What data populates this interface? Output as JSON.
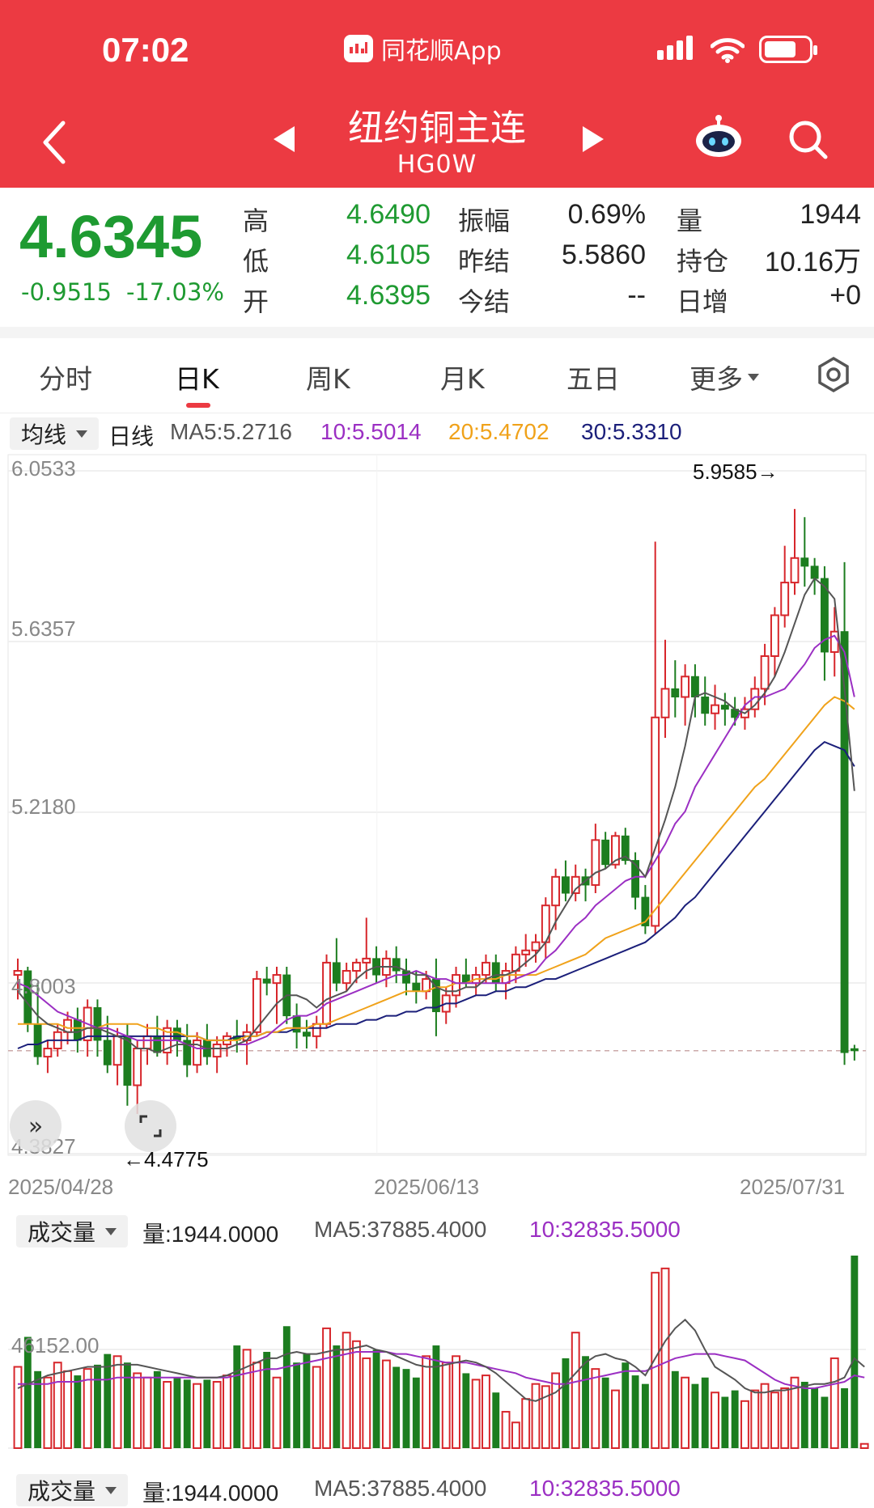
{
  "status_bar": {
    "time": "07:02",
    "app_label": "同花顺App"
  },
  "nav": {
    "title": "纽约铜主连",
    "code": "HG0W"
  },
  "quote": {
    "price": "4.6345",
    "change": "-0.9515",
    "change_pct": "-17.03%",
    "rows": [
      {
        "l1": "高",
        "v1": "4.6490",
        "l2": "振幅",
        "v2": "0.69%",
        "l3": "量",
        "v3": "1944"
      },
      {
        "l1": "低",
        "v1": "4.6105",
        "l2": "昨结",
        "v2": "5.5860",
        "l3": "持仓",
        "v3": "10.16万"
      },
      {
        "l1": "开",
        "v1": "4.6395",
        "l2": "今结",
        "v2": "--",
        "l3": "日增",
        "v3": "+0"
      }
    ]
  },
  "tabs": [
    "分时",
    "日K",
    "周K",
    "月K",
    "五日",
    "更多"
  ],
  "active_tab": "日K",
  "ma_bar": {
    "selector": "均线",
    "period": "日线",
    "ma5": "MA5:5.2716",
    "ma10": "10:5.5014",
    "ma20": "20:5.4702",
    "ma30": "30:5.3310"
  },
  "chart_data": {
    "type": "candlestick",
    "title": "",
    "y_ticks": [
      "6.0533",
      "5.6357",
      "5.2180",
      "4.8003",
      "4.3827"
    ],
    "ylim": [
      4.3827,
      6.0533
    ],
    "x_ticks": [
      "2025/04/28",
      "2025/06/13",
      "2025/07/31"
    ],
    "annotations": {
      "high": "5.9585→",
      "low": "←4.4775"
    },
    "last_price": 4.6345,
    "colors": {
      "up": "#d7262b",
      "down": "#1c7d1f",
      "ma5": "#555555",
      "ma10": "#9b2fc3",
      "ma20": "#f0a21a",
      "ma30": "#1b1f7a"
    },
    "candles": [
      [
        4.82,
        4.86,
        4.76,
        4.83
      ],
      [
        4.83,
        4.84,
        4.68,
        4.7
      ],
      [
        4.7,
        4.8,
        4.6,
        4.62
      ],
      [
        4.62,
        4.66,
        4.58,
        4.64
      ],
      [
        4.64,
        4.7,
        4.62,
        4.68
      ],
      [
        4.68,
        4.73,
        4.65,
        4.71
      ],
      [
        4.71,
        4.74,
        4.63,
        4.66
      ],
      [
        4.66,
        4.76,
        4.62,
        4.74
      ],
      [
        4.74,
        4.76,
        4.62,
        4.66
      ],
      [
        4.66,
        4.72,
        4.58,
        4.6
      ],
      [
        4.6,
        4.69,
        4.55,
        4.67
      ],
      [
        4.67,
        4.7,
        4.5,
        4.55
      ],
      [
        4.55,
        4.66,
        4.48,
        4.64
      ],
      [
        4.64,
        4.7,
        4.6,
        4.67
      ],
      [
        4.67,
        4.72,
        4.62,
        4.63
      ],
      [
        4.63,
        4.71,
        4.6,
        4.69
      ],
      [
        4.69,
        4.71,
        4.62,
        4.66
      ],
      [
        4.66,
        4.7,
        4.57,
        4.6
      ],
      [
        4.6,
        4.68,
        4.58,
        4.66
      ],
      [
        4.66,
        4.7,
        4.6,
        4.62
      ],
      [
        4.62,
        4.67,
        4.58,
        4.65
      ],
      [
        4.65,
        4.68,
        4.62,
        4.67
      ],
      [
        4.67,
        4.71,
        4.63,
        4.66
      ],
      [
        4.66,
        4.7,
        4.6,
        4.68
      ],
      [
        4.68,
        4.83,
        4.67,
        4.81
      ],
      [
        4.81,
        4.84,
        4.77,
        4.8
      ],
      [
        4.8,
        4.84,
        4.7,
        4.82
      ],
      [
        4.82,
        4.84,
        4.7,
        4.72
      ],
      [
        4.72,
        4.75,
        4.64,
        4.68
      ],
      [
        4.68,
        4.71,
        4.64,
        4.67
      ],
      [
        4.67,
        4.72,
        4.64,
        4.7
      ],
      [
        4.7,
        4.87,
        4.69,
        4.85
      ],
      [
        4.85,
        4.91,
        4.78,
        4.8
      ],
      [
        4.8,
        4.85,
        4.78,
        4.83
      ],
      [
        4.83,
        4.86,
        4.8,
        4.85
      ],
      [
        4.85,
        4.96,
        4.81,
        4.86
      ],
      [
        4.86,
        4.89,
        4.8,
        4.82
      ],
      [
        4.82,
        4.88,
        4.79,
        4.86
      ],
      [
        4.86,
        4.89,
        4.8,
        4.83
      ],
      [
        4.83,
        4.86,
        4.77,
        4.8
      ],
      [
        4.8,
        4.83,
        4.75,
        4.78
      ],
      [
        4.78,
        4.83,
        4.76,
        4.81
      ],
      [
        4.81,
        4.86,
        4.67,
        4.73
      ],
      [
        4.73,
        4.79,
        4.7,
        4.77
      ],
      [
        4.77,
        4.84,
        4.74,
        4.82
      ],
      [
        4.82,
        4.86,
        4.79,
        4.8
      ],
      [
        4.8,
        4.84,
        4.77,
        4.82
      ],
      [
        4.82,
        4.87,
        4.8,
        4.85
      ],
      [
        4.85,
        4.87,
        4.78,
        4.8
      ],
      [
        4.8,
        4.85,
        4.76,
        4.83
      ],
      [
        4.83,
        4.89,
        4.8,
        4.87
      ],
      [
        4.87,
        4.92,
        4.84,
        4.88
      ],
      [
        4.88,
        4.92,
        4.85,
        4.9
      ],
      [
        4.9,
        5.01,
        4.86,
        4.99
      ],
      [
        4.99,
        5.08,
        4.93,
        5.06
      ],
      [
        5.06,
        5.1,
        5.0,
        5.02
      ],
      [
        5.02,
        5.09,
        5.0,
        5.06
      ],
      [
        5.06,
        5.08,
        5.0,
        5.04
      ],
      [
        5.04,
        5.19,
        5.02,
        5.15
      ],
      [
        5.15,
        5.17,
        5.08,
        5.09
      ],
      [
        5.09,
        5.17,
        5.08,
        5.16
      ],
      [
        5.16,
        5.18,
        5.09,
        5.1
      ],
      [
        5.1,
        5.12,
        4.98,
        5.01
      ],
      [
        5.01,
        5.04,
        4.92,
        4.94
      ],
      [
        4.94,
        5.88,
        4.92,
        5.45
      ],
      [
        5.45,
        5.64,
        5.4,
        5.52
      ],
      [
        5.52,
        5.59,
        5.45,
        5.5
      ],
      [
        5.5,
        5.58,
        5.43,
        5.55
      ],
      [
        5.55,
        5.58,
        5.45,
        5.5
      ],
      [
        5.5,
        5.55,
        5.43,
        5.46
      ],
      [
        5.46,
        5.53,
        5.42,
        5.48
      ],
      [
        5.48,
        5.51,
        5.43,
        5.47
      ],
      [
        5.47,
        5.5,
        5.43,
        5.45
      ],
      [
        5.45,
        5.5,
        5.42,
        5.47
      ],
      [
        5.47,
        5.55,
        5.45,
        5.52
      ],
      [
        5.52,
        5.63,
        5.48,
        5.6
      ],
      [
        5.6,
        5.72,
        5.55,
        5.7
      ],
      [
        5.7,
        5.87,
        5.67,
        5.78
      ],
      [
        5.78,
        5.96,
        5.75,
        5.84
      ],
      [
        5.84,
        5.94,
        5.77,
        5.82
      ],
      [
        5.82,
        5.84,
        5.75,
        5.79
      ],
      [
        5.79,
        5.82,
        5.54,
        5.61
      ],
      [
        5.61,
        5.72,
        5.55,
        5.66
      ],
      [
        5.66,
        5.83,
        4.6,
        4.63
      ],
      [
        4.6395,
        4.649,
        4.6105,
        4.6345
      ]
    ],
    "ma": {
      "ma5": [
        4.78,
        4.75,
        4.72,
        4.7,
        4.69,
        4.68,
        4.68,
        4.69,
        4.69,
        4.68,
        4.67,
        4.66,
        4.64,
        4.64,
        4.63,
        4.64,
        4.65,
        4.65,
        4.65,
        4.64,
        4.64,
        4.64,
        4.65,
        4.66,
        4.69,
        4.72,
        4.75,
        4.77,
        4.77,
        4.76,
        4.74,
        4.76,
        4.77,
        4.78,
        4.81,
        4.83,
        4.84,
        4.84,
        4.84,
        4.83,
        4.82,
        4.82,
        4.79,
        4.78,
        4.78,
        4.79,
        4.79,
        4.81,
        4.82,
        4.82,
        4.83,
        4.85,
        4.87,
        4.9,
        4.95,
        4.99,
        5.03,
        5.05,
        5.07,
        5.08,
        5.1,
        5.11,
        5.09,
        5.06,
        5.13,
        5.2,
        5.28,
        5.38,
        5.5,
        5.51,
        5.5,
        5.49,
        5.47,
        5.46,
        5.48,
        5.51,
        5.55,
        5.61,
        5.68,
        5.75,
        5.79,
        5.77,
        5.74,
        5.52,
        5.27
      ],
      "ma10": [
        4.8,
        4.79,
        4.77,
        4.75,
        4.73,
        4.72,
        4.71,
        4.7,
        4.69,
        4.69,
        4.68,
        4.67,
        4.66,
        4.66,
        4.66,
        4.66,
        4.66,
        4.65,
        4.64,
        4.64,
        4.64,
        4.64,
        4.65,
        4.65,
        4.66,
        4.67,
        4.69,
        4.71,
        4.72,
        4.72,
        4.73,
        4.75,
        4.76,
        4.77,
        4.78,
        4.79,
        4.8,
        4.81,
        4.82,
        4.82,
        4.83,
        4.82,
        4.81,
        4.81,
        4.8,
        4.8,
        4.8,
        4.8,
        4.8,
        4.8,
        4.81,
        4.82,
        4.83,
        4.86,
        4.88,
        4.91,
        4.94,
        4.96,
        4.99,
        5.01,
        5.03,
        5.05,
        5.06,
        5.06,
        5.1,
        5.14,
        5.19,
        5.22,
        5.28,
        5.32,
        5.36,
        5.4,
        5.44,
        5.48,
        5.5,
        5.5,
        5.51,
        5.52,
        5.55,
        5.58,
        5.62,
        5.64,
        5.65,
        5.61,
        5.5
      ],
      "ma20": [
        4.7,
        4.7,
        4.7,
        4.7,
        4.7,
        4.69,
        4.69,
        4.69,
        4.69,
        4.7,
        4.7,
        4.7,
        4.7,
        4.69,
        4.69,
        4.68,
        4.68,
        4.67,
        4.67,
        4.66,
        4.66,
        4.66,
        4.66,
        4.67,
        4.67,
        4.68,
        4.68,
        4.69,
        4.69,
        4.69,
        4.7,
        4.7,
        4.71,
        4.72,
        4.73,
        4.74,
        4.75,
        4.76,
        4.77,
        4.78,
        4.78,
        4.78,
        4.79,
        4.79,
        4.8,
        4.8,
        4.81,
        4.81,
        4.81,
        4.82,
        4.82,
        4.82,
        4.82,
        4.83,
        4.84,
        4.85,
        4.86,
        4.87,
        4.89,
        4.91,
        4.92,
        4.93,
        4.94,
        4.95,
        4.98,
        5.01,
        5.04,
        5.07,
        5.1,
        5.13,
        5.16,
        5.19,
        5.22,
        5.25,
        5.28,
        5.3,
        5.33,
        5.36,
        5.39,
        5.42,
        5.45,
        5.48,
        5.5,
        5.49,
        5.47
      ],
      "ma30": [
        4.64,
        4.65,
        4.65,
        4.66,
        4.66,
        4.66,
        4.66,
        4.67,
        4.67,
        4.67,
        4.67,
        4.67,
        4.67,
        4.67,
        4.67,
        4.67,
        4.67,
        4.67,
        4.67,
        4.66,
        4.66,
        4.66,
        4.67,
        4.67,
        4.67,
        4.68,
        4.68,
        4.68,
        4.69,
        4.69,
        4.69,
        4.69,
        4.7,
        4.7,
        4.7,
        4.71,
        4.71,
        4.72,
        4.72,
        4.73,
        4.73,
        4.74,
        4.74,
        4.75,
        4.75,
        4.76,
        4.77,
        4.77,
        4.78,
        4.78,
        4.79,
        4.79,
        4.8,
        4.81,
        4.81,
        4.82,
        4.83,
        4.84,
        4.85,
        4.86,
        4.87,
        4.88,
        4.89,
        4.9,
        4.92,
        4.94,
        4.96,
        4.99,
        5.01,
        5.04,
        5.07,
        5.1,
        5.13,
        5.16,
        5.19,
        5.22,
        5.25,
        5.28,
        5.31,
        5.34,
        5.37,
        5.39,
        5.38,
        5.37,
        5.33
      ]
    }
  },
  "volume_bar": {
    "selector": "成交量",
    "vol": "量:1944.0000",
    "ma5": "MA5:37885.4000",
    "ma10": "10:32835.5000",
    "y_tick": "46152.00"
  },
  "volume_data": {
    "type": "bar",
    "ylim": [
      0,
      90000
    ],
    "values": [
      38000,
      52000,
      36000,
      33000,
      40000,
      36000,
      34000,
      37000,
      39000,
      44000,
      43000,
      40000,
      35000,
      33000,
      36000,
      31000,
      33000,
      32000,
      30000,
      32000,
      31000,
      34000,
      48000,
      46000,
      40000,
      45000,
      33000,
      57000,
      40000,
      44000,
      38000,
      56000,
      48000,
      54000,
      50000,
      42000,
      46000,
      41000,
      38000,
      37000,
      33000,
      43000,
      48000,
      40000,
      43000,
      35000,
      32000,
      34000,
      26000,
      17000,
      12000,
      23000,
      30000,
      29000,
      35000,
      42000,
      54000,
      43000,
      37000,
      33000,
      27000,
      40000,
      34000,
      30000,
      82000,
      84000,
      36000,
      33000,
      30000,
      33000,
      26000,
      24000,
      27000,
      22000,
      27000,
      30000,
      26000,
      28000,
      33000,
      31000,
      28000,
      24000,
      42000,
      28000,
      90000,
      2000
    ],
    "ma5": [
      28000,
      30000,
      32000,
      34000,
      35000,
      36000,
      37000,
      38000,
      38000,
      38000,
      39000,
      39000,
      39000,
      38000,
      37000,
      36000,
      35000,
      34000,
      33000,
      33000,
      33000,
      34000,
      36000,
      38000,
      40000,
      42000,
      42000,
      44000,
      45000,
      44000,
      44000,
      45000,
      46000,
      46000,
      47000,
      48000,
      46000,
      45000,
      43000,
      41000,
      39000,
      38000,
      38000,
      39000,
      40000,
      41000,
      40000,
      38000,
      35000,
      31000,
      27000,
      23000,
      22000,
      24000,
      26000,
      30000,
      35000,
      40000,
      43000,
      44000,
      42000,
      41000,
      38000,
      34000,
      42000,
      50000,
      56000,
      60000,
      55000,
      46000,
      38000,
      35000,
      32000,
      28000,
      26000,
      26000,
      27000,
      27000,
      28000,
      29000,
      30000,
      30000,
      31000,
      33000,
      42000,
      38000
    ],
    "ma10": [
      30000,
      30000,
      30000,
      30000,
      31000,
      31000,
      31000,
      32000,
      32000,
      32000,
      33000,
      33000,
      33000,
      33000,
      33000,
      33000,
      33000,
      33000,
      33000,
      33000,
      33000,
      33000,
      34000,
      35000,
      36000,
      37000,
      37000,
      38000,
      39000,
      40000,
      41000,
      42000,
      43000,
      44000,
      45000,
      45000,
      45000,
      45000,
      44000,
      44000,
      43000,
      42000,
      41000,
      40000,
      40000,
      40000,
      39000,
      38000,
      37000,
      36000,
      35000,
      33000,
      32000,
      31000,
      30000,
      30000,
      31000,
      32000,
      33000,
      34000,
      35000,
      36000,
      36000,
      36000,
      38000,
      40000,
      42000,
      43000,
      44000,
      44000,
      44000,
      43000,
      42000,
      41000,
      38000,
      35000,
      32000,
      30000,
      29000,
      28000,
      28000,
      29000,
      30000,
      31000,
      34000,
      33000
    ]
  }
}
